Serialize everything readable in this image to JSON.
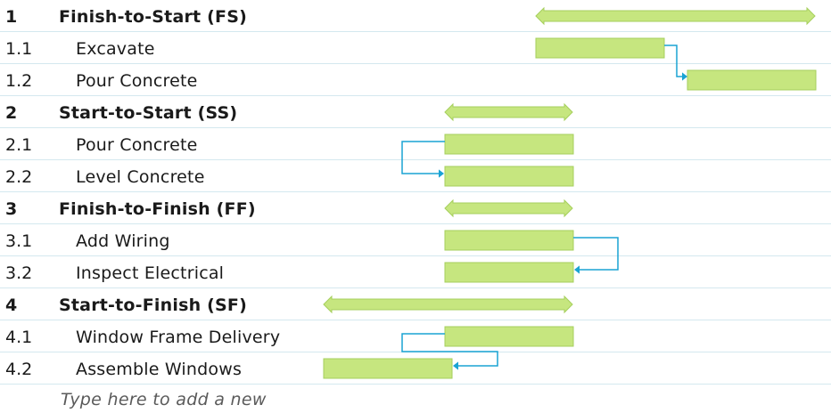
{
  "tasks": [
    {
      "id": "1",
      "name": "Finish-to-Start (FS)",
      "summary": true
    },
    {
      "id": "1.1",
      "name": "Excavate",
      "summary": false
    },
    {
      "id": "1.2",
      "name": "Pour Concrete",
      "summary": false
    },
    {
      "id": "2",
      "name": "Start-to-Start (SS)",
      "summary": true
    },
    {
      "id": "2.1",
      "name": "Pour Concrete",
      "summary": false
    },
    {
      "id": "2.2",
      "name": "Level Concrete",
      "summary": false
    },
    {
      "id": "3",
      "name": "Finish-to-Finish (FF)",
      "summary": true
    },
    {
      "id": "3.1",
      "name": "Add Wiring",
      "summary": false
    },
    {
      "id": "3.2",
      "name": "Inspect Electrical",
      "summary": false
    },
    {
      "id": "4",
      "name": "Start-to-Finish (SF)",
      "summary": true
    },
    {
      "id": "4.1",
      "name": "Window Frame Delivery",
      "summary": false
    },
    {
      "id": "4.2",
      "name": "Assemble Windows",
      "summary": false
    }
  ],
  "new_row_placeholder": "Type here to add a new",
  "colors": {
    "bar_fill": "#c6e67f",
    "bar_border": "#a5cf5c",
    "link": "#1aa3d4",
    "row_line": "#d4e8ef"
  },
  "dependency_links": [
    {
      "from": "1.1",
      "to": "1.2",
      "type": "FS"
    },
    {
      "from": "2.1",
      "to": "2.2",
      "type": "SS"
    },
    {
      "from": "3.1",
      "to": "3.2",
      "type": "FF"
    },
    {
      "from": "4.1",
      "to": "4.2",
      "type": "SF"
    }
  ]
}
